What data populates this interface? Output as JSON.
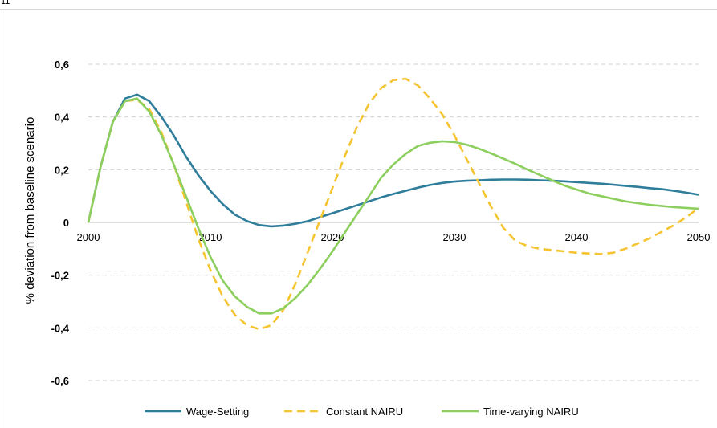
{
  "corner_mark": "11",
  "chart_data": {
    "type": "line",
    "title": "",
    "xlabel": "",
    "ylabel": "% deviation from baseline scenario",
    "xlim": [
      2000,
      2050
    ],
    "ylim": [
      -0.6,
      0.6
    ],
    "x_ticks": [
      2000,
      2010,
      2020,
      2030,
      2040,
      2050
    ],
    "x_tick_labels": [
      "2000",
      "2010",
      "2020",
      "2030",
      "2040",
      "2050"
    ],
    "y_ticks": [
      -0.6,
      -0.4,
      -0.2,
      0,
      0.2,
      0.4,
      0.6
    ],
    "y_tick_labels": [
      "-0,6",
      "-0,4",
      "-0,2",
      "0",
      "0,2",
      "0,4",
      "0,6"
    ],
    "grid": "horizontal dashed",
    "legend_position": "bottom",
    "x": [
      2000,
      2001,
      2002,
      2003,
      2004,
      2005,
      2006,
      2007,
      2008,
      2009,
      2010,
      2011,
      2012,
      2013,
      2014,
      2015,
      2016,
      2017,
      2018,
      2019,
      2020,
      2021,
      2022,
      2023,
      2024,
      2025,
      2026,
      2027,
      2028,
      2029,
      2030,
      2031,
      2032,
      2033,
      2034,
      2035,
      2036,
      2037,
      2038,
      2039,
      2040,
      2041,
      2042,
      2043,
      2044,
      2045,
      2046,
      2047,
      2048,
      2049,
      2050
    ],
    "series": [
      {
        "name": "Wage-Setting",
        "color": "#2E7D9A",
        "dash": "solid",
        "values": [
          0,
          0.21,
          0.38,
          0.47,
          0.485,
          0.46,
          0.4,
          0.33,
          0.25,
          0.18,
          0.12,
          0.07,
          0.03,
          0.005,
          -0.01,
          -0.015,
          -0.012,
          -0.005,
          0.005,
          0.02,
          0.035,
          0.05,
          0.065,
          0.08,
          0.095,
          0.108,
          0.12,
          0.132,
          0.142,
          0.15,
          0.155,
          0.158,
          0.16,
          0.162,
          0.163,
          0.163,
          0.162,
          0.16,
          0.158,
          0.156,
          0.153,
          0.15,
          0.147,
          0.143,
          0.139,
          0.135,
          0.13,
          0.126,
          0.12,
          0.113,
          0.105
        ]
      },
      {
        "name": "Constant NAIRU",
        "color": "#F5C431",
        "dash": "dashed",
        "values": [
          0,
          0.21,
          0.38,
          0.46,
          0.465,
          0.43,
          0.34,
          0.22,
          0.08,
          -0.06,
          -0.18,
          -0.28,
          -0.35,
          -0.39,
          -0.405,
          -0.39,
          -0.33,
          -0.23,
          -0.11,
          0.01,
          0.13,
          0.25,
          0.36,
          0.45,
          0.51,
          0.54,
          0.545,
          0.52,
          0.47,
          0.41,
          0.33,
          0.24,
          0.15,
          0.06,
          -0.02,
          -0.07,
          -0.09,
          -0.1,
          -0.105,
          -0.11,
          -0.115,
          -0.118,
          -0.12,
          -0.115,
          -0.1,
          -0.08,
          -0.06,
          -0.035,
          -0.01,
          0.02,
          0.055
        ]
      },
      {
        "name": "Time-varying NAIRU",
        "color": "#8DCF5E",
        "dash": "solid",
        "values": [
          0,
          0.21,
          0.38,
          0.46,
          0.47,
          0.42,
          0.33,
          0.22,
          0.1,
          -0.02,
          -0.13,
          -0.22,
          -0.28,
          -0.32,
          -0.345,
          -0.345,
          -0.325,
          -0.285,
          -0.235,
          -0.175,
          -0.11,
          -0.04,
          0.03,
          0.1,
          0.17,
          0.22,
          0.26,
          0.29,
          0.302,
          0.308,
          0.305,
          0.295,
          0.28,
          0.262,
          0.242,
          0.222,
          0.2,
          0.18,
          0.16,
          0.14,
          0.125,
          0.11,
          0.1,
          0.09,
          0.08,
          0.073,
          0.067,
          0.062,
          0.058,
          0.055,
          0.052
        ]
      }
    ]
  }
}
